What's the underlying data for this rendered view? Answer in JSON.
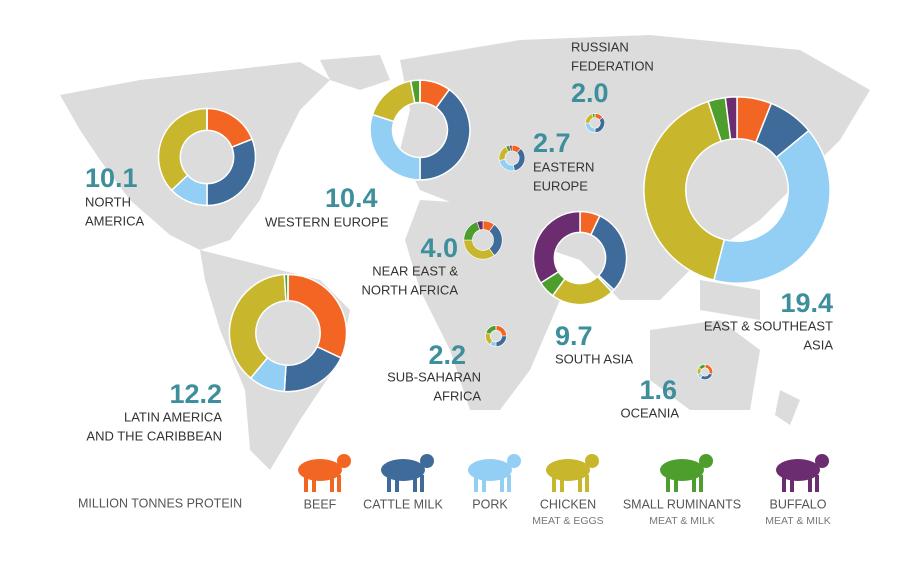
{
  "chart_data": [
    {
      "type": "pie",
      "title_lines": [
        "NORTH",
        "AMERICA"
      ],
      "total": {
        "value": 10.1,
        "label": "10.1"
      },
      "values": [
        19,
        31,
        13,
        37,
        0,
        0
      ]
    },
    {
      "type": "pie",
      "title_lines": [
        "WESTERN EUROPE"
      ],
      "total": {
        "value": 10.4,
        "label": "10.4"
      },
      "values": [
        10,
        40,
        30,
        17,
        3,
        0
      ]
    },
    {
      "type": "pie",
      "title_lines": [
        "LATIN AMERICA",
        "AND THE CARIBBEAN"
      ],
      "total": {
        "value": 12.2,
        "label": "12.2"
      },
      "values": [
        32,
        19,
        10,
        38,
        1,
        0
      ]
    },
    {
      "type": "pie",
      "title_lines": [
        "NEAR EAST &",
        "NORTH AFRICA"
      ],
      "total": {
        "value": 4,
        "label": "4.0"
      },
      "values": [
        10,
        30,
        0,
        35,
        20,
        5
      ]
    },
    {
      "type": "pie",
      "title_lines": [
        "EASTERN",
        "EUROPE"
      ],
      "total": {
        "value": 2.7,
        "label": "2.7"
      },
      "values": [
        12,
        35,
        25,
        20,
        5,
        3
      ]
    },
    {
      "type": "pie",
      "title_lines": [
        "RUSSIAN",
        "FEDERATION"
      ],
      "total": {
        "value": 2,
        "label": "2.0"
      },
      "values": [
        15,
        35,
        25,
        20,
        5,
        0
      ]
    },
    {
      "type": "pie",
      "title_lines": [
        "SUB-SAHARAN",
        "AFRICA"
      ],
      "total": {
        "value": 2.2,
        "label": "2.2"
      },
      "values": [
        25,
        25,
        10,
        20,
        20,
        0
      ]
    },
    {
      "type": "pie",
      "title_lines": [
        "SOUTH ASIA"
      ],
      "total": {
        "value": 9.7,
        "label": "9.7"
      },
      "values": [
        7,
        30,
        1,
        22,
        6,
        34
      ]
    },
    {
      "type": "pie",
      "title_lines": [
        "EAST & SOUTHEAST",
        "ASIA"
      ],
      "total": {
        "value": 19.4,
        "label": "19.4"
      },
      "values": [
        6,
        8,
        40,
        41,
        3,
        2
      ]
    },
    {
      "type": "pie",
      "title_lines": [
        "OCEANIA"
      ],
      "total": {
        "value": 1.6,
        "label": "1.6"
      },
      "values": [
        30,
        30,
        10,
        15,
        15,
        0
      ]
    }
  ],
  "unit": "MILLION TONNES PROTEIN",
  "legend": [
    {
      "label": "BEEF",
      "color": "#f26522"
    },
    {
      "label": "CATTLE MILK",
      "color": "#3f6b9b"
    },
    {
      "label": "PORK",
      "color": "#93cff5"
    },
    {
      "label": "CHICKEN",
      "sublabel": "MEAT & EGGS",
      "color": "#c8b62c"
    },
    {
      "label": "SMALL RUMINANTS",
      "sublabel": "MEAT & MILK",
      "color": "#4d9e2c"
    },
    {
      "label": "BUFFALO",
      "sublabel": "MEAT & MILK",
      "color": "#6c2c70"
    }
  ]
}
